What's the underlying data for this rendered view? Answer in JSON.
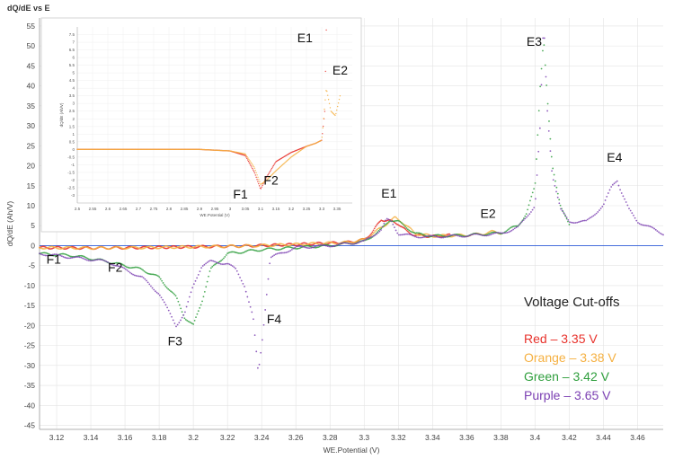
{
  "chart_data": [
    {
      "type": "scatter",
      "title": "dQ/dE vs E",
      "xlabel": "WE.Potential (V)",
      "ylabel": "dQ/dE (Ah/V)",
      "xlim": [
        3.11,
        3.475
      ],
      "ylim": [
        -46,
        57
      ],
      "x_ticks": [
        "3.12",
        "3.14",
        "3.16",
        "3.18",
        "3.2",
        "3.22",
        "3.24",
        "3.26",
        "3.28",
        "3.3",
        "3.32",
        "3.34",
        "3.36",
        "3.38",
        "3.4",
        "3.42",
        "3.44",
        "3.46"
      ],
      "y_ticks": [
        "55",
        "50",
        "45",
        "40",
        "35",
        "30",
        "25",
        "20",
        "15",
        "10",
        "5",
        "0",
        "-5",
        "-10",
        "-15",
        "-20",
        "-25",
        "-30",
        "-35",
        "-40",
        "-45"
      ],
      "grid": true,
      "legend_title": "Voltage Cut-offs",
      "series": [
        {
          "name": "Red – 3.35 V",
          "color": "#e8322c",
          "x": [
            3.11,
            3.14,
            3.17,
            3.2,
            3.23,
            3.26,
            3.29,
            3.3,
            3.305,
            3.31,
            3.315,
            3.32,
            3.325,
            3.33,
            3.34,
            3.35
          ],
          "y": [
            -0.5,
            -0.6,
            -0.5,
            -0.3,
            -0.1,
            0.3,
            0.8,
            1.5,
            3.5,
            6.5,
            6.2,
            5.5,
            3.5,
            2.6,
            2.3,
            2.6
          ]
        },
        {
          "name": "Orange – 3.38 V",
          "color": "#f5b041",
          "x": [
            3.11,
            3.14,
            3.17,
            3.2,
            3.23,
            3.26,
            3.29,
            3.3,
            3.31,
            3.318,
            3.322,
            3.33,
            3.34,
            3.36,
            3.37,
            3.375,
            3.38
          ],
          "y": [
            -0.5,
            -0.6,
            -0.5,
            -0.3,
            -0.1,
            0.3,
            0.8,
            1.5,
            4.5,
            7.0,
            6.0,
            3.0,
            2.4,
            2.6,
            3.0,
            3.5,
            3.2
          ]
        },
        {
          "name": "Green – 3.42 V",
          "color": "#2e9e3c",
          "x": [
            3.11,
            3.13,
            3.15,
            3.17,
            3.18,
            3.19,
            3.195,
            3.2,
            3.205,
            3.21,
            3.22,
            3.24,
            3.26,
            3.28,
            3.3,
            3.31,
            3.315,
            3.32,
            3.33,
            3.34,
            3.36,
            3.38,
            3.39,
            3.395,
            3.4,
            3.403,
            3.405,
            3.407,
            3.41,
            3.415,
            3.42
          ],
          "y": [
            -2,
            -2.5,
            -4,
            -6,
            -8,
            -13,
            -18,
            -20,
            -14,
            -6,
            -2,
            -1,
            -0.5,
            0,
            1,
            4,
            6.5,
            6,
            3,
            2.4,
            2.6,
            3.2,
            5,
            8,
            15,
            40,
            52,
            38,
            20,
            10,
            5
          ]
        },
        {
          "name": "Purple – 3.65 V",
          "color": "#7b3fb2",
          "x": [
            3.11,
            3.13,
            3.15,
            3.17,
            3.18,
            3.185,
            3.19,
            3.195,
            3.2,
            3.205,
            3.21,
            3.22,
            3.225,
            3.23,
            3.235,
            3.238,
            3.24,
            3.245,
            3.26,
            3.28,
            3.3,
            3.31,
            3.313,
            3.316,
            3.32,
            3.33,
            3.34,
            3.36,
            3.38,
            3.39,
            3.4,
            3.403,
            3.405,
            3.407,
            3.41,
            3.415,
            3.42,
            3.43,
            3.44,
            3.445,
            3.448,
            3.45,
            3.455,
            3.46,
            3.47,
            3.475
          ],
          "y": [
            -2,
            -3,
            -4,
            -8,
            -12,
            -16,
            -20,
            -17,
            -10,
            -5,
            -4,
            -4.5,
            -6,
            -10,
            -18,
            -32,
            -25,
            -3,
            -0.5,
            0,
            1,
            4,
            6.5,
            6,
            3,
            2.3,
            2.2,
            2.5,
            3.0,
            4.5,
            10,
            30,
            57,
            35,
            18,
            9,
            6,
            6,
            10,
            15,
            16.5,
            14,
            9,
            6,
            4,
            3
          ]
        }
      ],
      "annotations": [
        "E1",
        "E2",
        "E3",
        "E4",
        "F1",
        "F2",
        "F3",
        "F4"
      ]
    },
    {
      "type": "line",
      "title": "",
      "xlabel": "WE.Potential (V)",
      "ylabel": "dQ/dE (Ah/V)",
      "xlim": [
        2.5,
        3.4
      ],
      "ylim": [
        -3.5,
        8
      ],
      "x_ticks": [
        "2.5",
        "2.55",
        "2.6",
        "2.65",
        "2.7",
        "2.75",
        "2.8",
        "2.85",
        "2.9",
        "2.95",
        "3",
        "3.05",
        "3.1",
        "3.15",
        "3.2",
        "3.25",
        "3.3",
        "3.35"
      ],
      "y_ticks": [
        "7.5",
        "7",
        "6.5",
        "6",
        "5.5",
        "5",
        "4.5",
        "4",
        "3.5",
        "3",
        "2.5",
        "2",
        "1.5",
        "1",
        "0.5",
        "0",
        "-0.5",
        "-1",
        "-1.5",
        "-2",
        "-2.5",
        "-3"
      ],
      "series": [
        {
          "name": "",
          "color": "#e8322c",
          "x": [
            2.5,
            2.7,
            2.9,
            3.0,
            3.05,
            3.08,
            3.1,
            3.12,
            3.15,
            3.2,
            3.25,
            3.28,
            3.3,
            3.31,
            3.315
          ],
          "y": [
            0,
            0,
            0,
            -0.1,
            -0.4,
            -1.5,
            -2.6,
            -1.8,
            -0.8,
            -0.2,
            0.2,
            0.4,
            0.6,
            2.5,
            7.8
          ]
        },
        {
          "name": "",
          "color": "#f5b041",
          "x": [
            2.5,
            2.7,
            2.9,
            3.0,
            3.05,
            3.08,
            3.1,
            3.12,
            3.15,
            3.2,
            3.25,
            3.28,
            3.3,
            3.315,
            3.33,
            3.345,
            3.36
          ],
          "y": [
            0,
            0,
            0,
            -0.1,
            -0.3,
            -1.2,
            -2.3,
            -2.0,
            -1.4,
            -0.5,
            0.2,
            0.4,
            0.6,
            4,
            2.5,
            2.2,
            3.5
          ]
        }
      ],
      "annotations": [
        "E1",
        "E2",
        "F1",
        "F2"
      ]
    }
  ],
  "legend": {
    "title": "Voltage Cut-offs",
    "entries": [
      {
        "label": "Red – 3.35 V",
        "color": "#e8322c"
      },
      {
        "label": "Orange – 3.38 V",
        "color": "#f5b041"
      },
      {
        "label": "Green – 3.42 V",
        "color": "#2e9e3c"
      },
      {
        "label": "Purple – 3.65 V",
        "color": "#7b3fb2"
      }
    ]
  }
}
